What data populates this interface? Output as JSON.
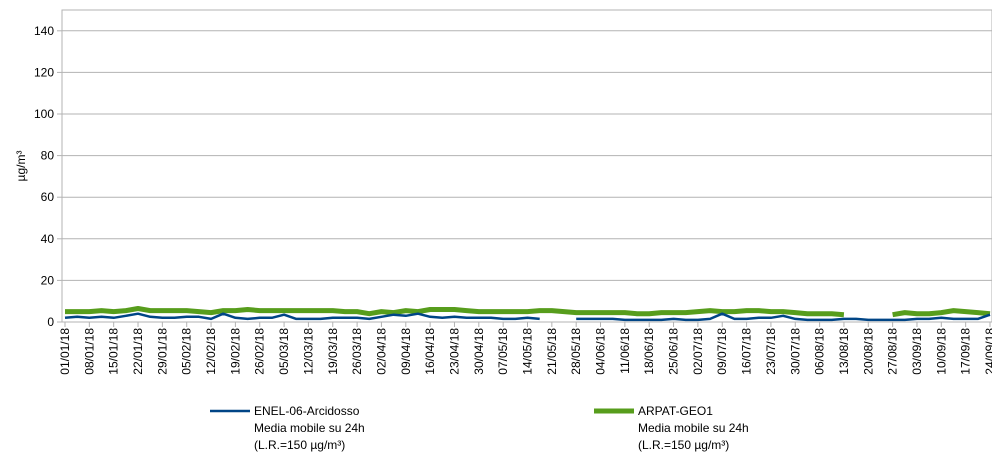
{
  "chart_data": {
    "type": "line",
    "y_label": "µg/m³",
    "categories": [
      "01/01/18",
      null,
      "08/01/18",
      null,
      "15/01/18",
      null,
      "22/01/18",
      null,
      "29/01/18",
      null,
      "05/02/18",
      null,
      "12/02/18",
      null,
      "19/02/18",
      null,
      "26/02/18",
      null,
      "05/03/18",
      null,
      "12/03/18",
      null,
      "19/03/18",
      null,
      "26/03/18",
      null,
      "02/04/18",
      null,
      "09/04/18",
      null,
      "16/04/18",
      null,
      "23/04/18",
      null,
      "30/04/18",
      null,
      "07/05/18",
      null,
      "14/05/18",
      null,
      "21/05/18",
      null,
      "28/05/18",
      null,
      "04/06/18",
      null,
      "11/06/18",
      null,
      "18/06/18",
      null,
      "25/06/18",
      null,
      "02/07/18",
      null,
      "09/07/18",
      null,
      "16/07/18",
      null,
      "23/07/18",
      null,
      "30/07/18",
      null,
      "06/08/18",
      null,
      "13/08/18",
      null,
      "20/08/18",
      null,
      "27/08/18",
      null,
      "03/09/18",
      null,
      "10/09/18",
      null,
      "17/09/18",
      null,
      "24/09/18"
    ],
    "series": [
      {
        "name": "ENEL-06-Arcidosso",
        "description": [
          "Media mobile su 24h",
          "(L.R.=150 µg/m³)"
        ],
        "color": "#004586",
        "values": [
          2,
          2.5,
          2,
          2.5,
          2,
          3,
          4,
          2.5,
          2,
          2,
          2.5,
          2.5,
          1.5,
          4,
          2,
          1.5,
          2,
          2,
          3.5,
          1.5,
          1.5,
          1.5,
          2,
          2,
          2,
          1.5,
          2.5,
          3.5,
          3,
          4,
          2.5,
          2,
          2.5,
          2,
          2,
          2,
          1.5,
          1.5,
          2,
          1.5,
          null,
          null,
          1.5,
          1.5,
          1.5,
          1.5,
          1,
          1,
          1,
          1,
          1.5,
          1,
          1,
          1.5,
          4,
          1.5,
          1.5,
          2,
          2,
          3,
          1.5,
          1,
          1,
          1,
          1.5,
          1.5,
          1,
          1,
          1,
          1,
          1.5,
          1.5,
          2,
          1.5,
          1.5,
          1.5,
          3.5
        ]
      },
      {
        "name": "ARPAT-GEO1",
        "description": [
          "Media mobile su 24h",
          "(L.R.=150 µg/m³)"
        ],
        "color": "#579d1c",
        "values": [
          5,
          5,
          5,
          5.5,
          5,
          5.5,
          6.5,
          5.5,
          5.5,
          5.5,
          5.5,
          5,
          4.5,
          5.5,
          5.5,
          6,
          5.5,
          5.5,
          5.5,
          5.5,
          5.5,
          5.5,
          5.5,
          5,
          5,
          4,
          5,
          4.5,
          5.5,
          5,
          6,
          6,
          6,
          5.5,
          5,
          5,
          5,
          5,
          5,
          5.5,
          5.5,
          5,
          4.5,
          4.5,
          4.5,
          4.5,
          4.5,
          4,
          4,
          4.5,
          4.5,
          4.5,
          5,
          5.5,
          5,
          5,
          5.5,
          5.5,
          5,
          5,
          4.5,
          4,
          4,
          4,
          3.5,
          null,
          3.5,
          null,
          3.5,
          4.5,
          4,
          4,
          4.5,
          5.5,
          5,
          4.5,
          4
        ]
      }
    ],
    "ylim": [
      0,
      150
    ],
    "yticks": [
      0,
      20,
      40,
      60,
      80,
      100,
      120,
      140
    ],
    "grid": true
  }
}
